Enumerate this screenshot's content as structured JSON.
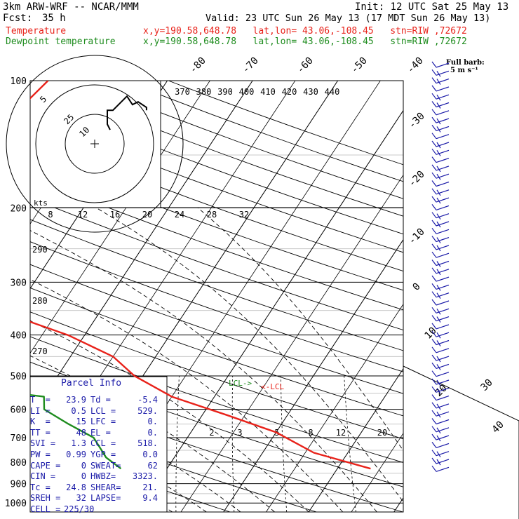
{
  "header": {
    "model": "3km ARW-WRF -- NCAR/MMM",
    "init": "Init: 12 UTC Sat 25 May 13",
    "fcst_label": "Fcst:",
    "fcst_value": "35 h",
    "valid": "Valid: 23 UTC Sun 26 May 13 (17 MDT Sun 26 May 13)",
    "temp_label": "Temperature",
    "dew_label": "Dewpoint temperature",
    "loc_info": "x,y=190.58,648.78   lat,lon= 43.06,-108.45   stn=RIW ,72672",
    "barb_note_1": "Full barb:",
    "barb_note_2": "5 m s⁻¹"
  },
  "colors": {
    "temperature": "#e8221a",
    "dewpoint": "#1e8c1e",
    "info": "#1a1aa8",
    "grid": "#000000"
  },
  "chart_data": {
    "type": "line",
    "pressure_levels": [
      100,
      200,
      300,
      400,
      500,
      600,
      700,
      800,
      900,
      1000
    ],
    "pressure_labels": [
      "100",
      "200",
      "300",
      "400",
      "500",
      "600",
      "700",
      "800",
      "900",
      "1000"
    ],
    "temperature_ticks": [
      -80,
      -70,
      -60,
      -50,
      -40,
      -30,
      -20,
      -10,
      0,
      10,
      20,
      30,
      40
    ],
    "temperature_tick_labels": [
      "-80",
      "-70",
      "-60",
      "-50",
      "-40",
      "-30",
      "-20",
      "-10",
      "0",
      "10",
      "20",
      "30",
      "40"
    ],
    "theta_labels": [
      "370",
      "380",
      "390",
      "400",
      "410",
      "420",
      "430",
      "440"
    ],
    "theta_side_labels": [
      "290",
      "280",
      "270"
    ],
    "mixing_ratio_labels": [
      "2",
      "3",
      "5",
      "8",
      "12",
      "20"
    ],
    "hodograph_ring_labels": [
      "5",
      "25",
      "10"
    ],
    "hodograph_axis_label": "kts",
    "hodograph_speed_labels": [
      "8",
      "12",
      "16",
      "20",
      "24",
      "28",
      "32"
    ],
    "series": [
      {
        "name": "Temperature",
        "points": [
          [
            -44,
            100
          ],
          [
            -46,
            130
          ],
          [
            -50,
            160
          ],
          [
            -55,
            180
          ],
          [
            -58,
            200
          ],
          [
            -56,
            220
          ],
          [
            -50,
            260
          ],
          [
            -42,
            300
          ],
          [
            -30,
            360
          ],
          [
            -22,
            400
          ],
          [
            -15,
            450
          ],
          [
            -11,
            500
          ],
          [
            -5,
            560
          ],
          [
            3,
            620
          ],
          [
            10,
            680
          ],
          [
            16,
            760
          ],
          [
            23.9,
            829
          ]
        ]
      },
      {
        "name": "Dewpoint temperature",
        "points": [
          [
            -76,
            100
          ],
          [
            -79,
            160
          ],
          [
            -76,
            200
          ],
          [
            -75,
            230
          ],
          [
            -70,
            270
          ],
          [
            -62,
            320
          ],
          [
            -52,
            370
          ],
          [
            -45,
            420
          ],
          [
            -38,
            470
          ],
          [
            -27,
            540
          ],
          [
            -20,
            560
          ],
          [
            -19,
            600
          ],
          [
            -15,
            650
          ],
          [
            -11,
            700
          ],
          [
            -8,
            780
          ],
          [
            -5.4,
            829
          ]
        ]
      }
    ],
    "hodograph_trace_kts": [
      [
        -2,
        10
      ],
      [
        -3,
        12
      ],
      [
        -3,
        17
      ],
      [
        -1,
        17
      ],
      [
        2,
        20
      ],
      [
        4,
        22
      ],
      [
        6,
        19
      ],
      [
        8,
        20
      ],
      [
        11,
        18
      ],
      [
        11,
        17
      ]
    ]
  },
  "parcel": {
    "title": "Parcel Info",
    "rows": [
      {
        "k1": "T  =",
        "v1": "23.9",
        "k2": "Td =",
        "v2": "-5.4"
      },
      {
        "k1": "LI =",
        "v1": "0.5",
        "k2": "LCL =",
        "v2": "529."
      },
      {
        "k1": "K  =",
        "v1": "15",
        "k2": "LFC =",
        "v2": "0."
      },
      {
        "k1": "TT =",
        "v1": "48",
        "k2": "EL =",
        "v2": "0."
      },
      {
        "k1": "SVI =",
        "v1": "1.3",
        "k2": "CCL =",
        "v2": "518."
      },
      {
        "k1": "PW =",
        "v1": "0.99",
        "k2": "YGP =",
        "v2": "0.0"
      },
      {
        "k1": "CAPE =",
        "v1": "0",
        "k2": "SWEAT=",
        "v2": "62"
      },
      {
        "k1": "CIN =",
        "v1": "0",
        "k2": "HWBZ=",
        "v2": "3323."
      },
      {
        "k1": "Tc =",
        "v1": "24.8",
        "k2": "SHEAR=",
        "v2": "21."
      },
      {
        "k1": "SREH =",
        "v1": "32",
        "k2": "LAPSE=",
        "v2": "9.4"
      },
      {
        "k1": "CELL =",
        "v1": "225/30",
        "k2": "",
        "v2": ""
      }
    ],
    "lcl_marker_1": "LCL->",
    "lcl_marker_2": "<-LCL"
  }
}
